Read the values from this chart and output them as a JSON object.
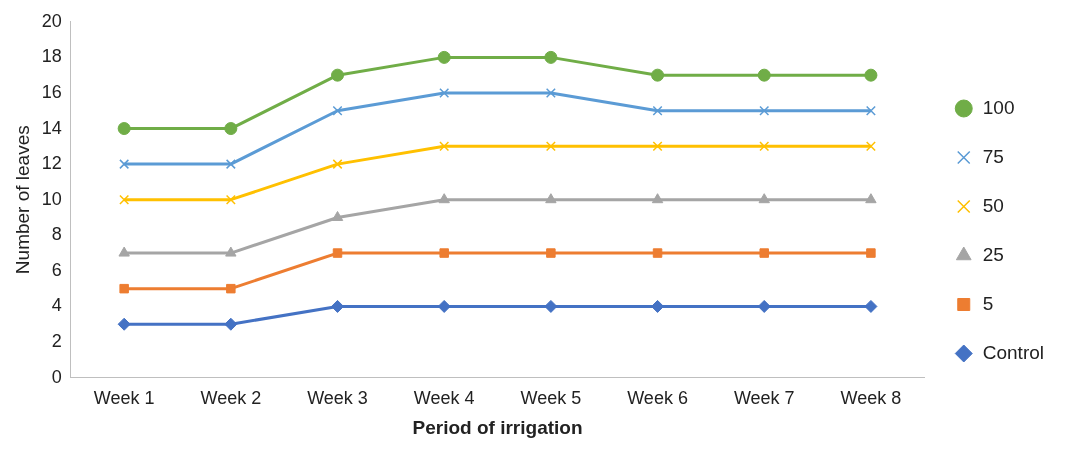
{
  "chart_data": {
    "type": "line",
    "xlabel": "Period of irrigation",
    "ylabel": "Number of leaves",
    "categories": [
      "Week 1",
      "Week 2",
      "Week 3",
      "Week 4",
      "Week 5",
      "Week 6",
      "Week 7",
      "Week 8"
    ],
    "ylim": [
      0,
      20
    ],
    "yticks": [
      0,
      2,
      4,
      6,
      8,
      10,
      12,
      14,
      16,
      18,
      20
    ],
    "grid": false,
    "legend": "right",
    "line_style": "solid",
    "series": [
      {
        "name": "100",
        "color": "#70ad47",
        "marker": "circle",
        "values": [
          14,
          14,
          17,
          18,
          18,
          17,
          17,
          17
        ]
      },
      {
        "name": "75",
        "color": "#5b9bd5",
        "marker": "cross",
        "values": [
          12,
          12,
          15,
          16,
          16,
          15,
          15,
          15
        ]
      },
      {
        "name": "50",
        "color": "#ffc000",
        "marker": "cross",
        "values": [
          10,
          10,
          12,
          13,
          13,
          13,
          13,
          13
        ]
      },
      {
        "name": "25",
        "color": "#a5a5a5",
        "marker": "triangle",
        "values": [
          7,
          7,
          9,
          10,
          10,
          10,
          10,
          10
        ]
      },
      {
        "name": "5",
        "color": "#ed7d31",
        "marker": "square",
        "values": [
          5,
          5,
          7,
          7,
          7,
          7,
          7,
          7
        ]
      },
      {
        "name": "Control",
        "color": "#4472c4",
        "marker": "diamond",
        "values": [
          3,
          3,
          4,
          4,
          4,
          4,
          4,
          4
        ]
      }
    ]
  }
}
